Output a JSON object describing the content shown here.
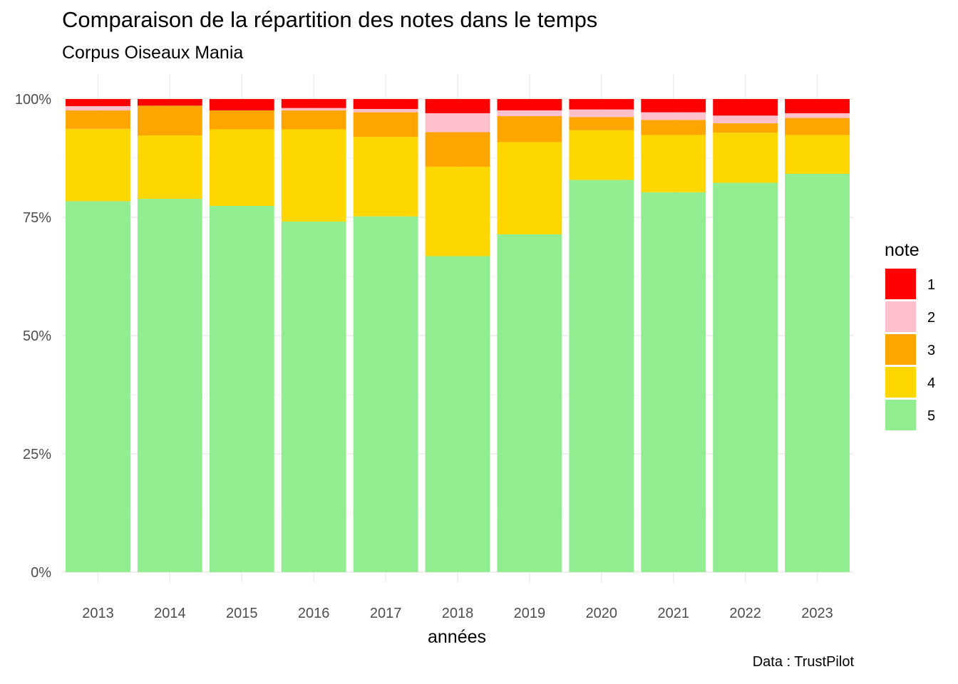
{
  "title": "Comparaison de la répartition des notes dans le temps",
  "subtitle": "Corpus Oiseaux Mania",
  "caption": "Data : TrustPilot",
  "chart_data": {
    "type": "bar",
    "stacked": true,
    "position": "fill",
    "title": "Comparaison de la répartition des notes dans le temps",
    "subtitle": "Corpus Oiseaux Mania",
    "xlabel": "années",
    "ylabel": "",
    "ylim": [
      0,
      1
    ],
    "y_ticks": [
      "0%",
      "25%",
      "50%",
      "75%",
      "100%"
    ],
    "y_tick_values": [
      0,
      0.25,
      0.5,
      0.75,
      1.0
    ],
    "grid": true,
    "legend_title": "note",
    "legend_position": "right",
    "categories": [
      "2013",
      "2014",
      "2015",
      "2016",
      "2017",
      "2018",
      "2019",
      "2020",
      "2021",
      "2022",
      "2023"
    ],
    "series": [
      {
        "name": "5",
        "color": "#90EE90",
        "values": [
          0.784,
          0.789,
          0.774,
          0.741,
          0.752,
          0.668,
          0.714,
          0.829,
          0.803,
          0.823,
          0.842
        ]
      },
      {
        "name": "4",
        "color": "#FFD700",
        "values": [
          0.153,
          0.134,
          0.162,
          0.195,
          0.168,
          0.189,
          0.195,
          0.105,
          0.121,
          0.106,
          0.082
        ]
      },
      {
        "name": "3",
        "color": "#FFA500",
        "values": [
          0.039,
          0.063,
          0.04,
          0.04,
          0.052,
          0.073,
          0.055,
          0.028,
          0.032,
          0.02,
          0.036
        ]
      },
      {
        "name": "2",
        "color": "#FFC0CB",
        "values": [
          0.009,
          0.0,
          0.0,
          0.005,
          0.007,
          0.04,
          0.012,
          0.016,
          0.016,
          0.016,
          0.01
        ]
      },
      {
        "name": "1",
        "color": "#FF0000",
        "values": [
          0.015,
          0.014,
          0.024,
          0.019,
          0.021,
          0.03,
          0.024,
          0.022,
          0.028,
          0.035,
          0.03
        ]
      }
    ],
    "legend_order": [
      "1",
      "2",
      "3",
      "4",
      "5"
    ]
  }
}
